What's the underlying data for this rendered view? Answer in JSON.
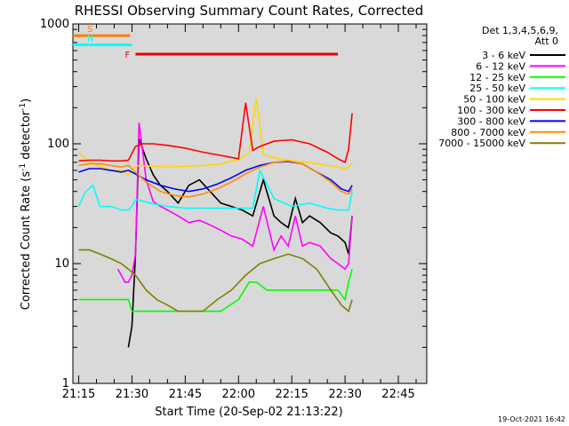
{
  "chart_data": {
    "type": "line",
    "title": "RHESSI Observing Summary Count Rates, Corrected",
    "xlabel": "Start Time (20-Sep-02 21:13:22)",
    "ylabel_main": "Corrected Count Rate (s",
    "ylabel_exp1": "-1",
    "ylabel_mid": " detector",
    "ylabel_exp2": "-1",
    "ylabel_end": ")",
    "y_scale": "log",
    "ylim": [
      1,
      1000
    ],
    "xlim": [
      "21:13:22",
      "22:53:00"
    ],
    "x_ticks": [
      "21:15",
      "21:30",
      "21:45",
      "22:00",
      "22:15",
      "22:30",
      "22:45"
    ],
    "y_ticks": [
      "1",
      "10",
      "100",
      "1000"
    ],
    "legend_header": [
      "Det 1,3,4,5,6,9,",
      "Att 0"
    ],
    "legend_position": "right",
    "footer_date": "19-Oct-2021 16:42",
    "flags": [
      {
        "label": "S",
        "color": "#ff7f00",
        "value": 800,
        "from": "21:13:22",
        "to": "21:29:30"
      },
      {
        "label": "N",
        "color": "#00ffff",
        "value": 670,
        "from": "21:13:22",
        "to": "21:30:00"
      },
      {
        "label": "F",
        "color": "#e00000",
        "value": 560,
        "from": "21:31:00",
        "to": "22:28:00"
      }
    ],
    "series": [
      {
        "name": "3 - 6 keV",
        "color": "#000000",
        "x": [
          "21:15",
          "21:18",
          "21:21",
          "21:24",
          "21:27",
          "21:29",
          "21:30",
          "21:31",
          "21:32",
          "21:34",
          "21:36",
          "21:38",
          "21:40",
          "21:43",
          "21:46",
          "21:49",
          "21:52",
          "21:55",
          "21:58",
          "22:01",
          "22:04",
          "22:07",
          "22:10",
          "22:12",
          "22:14",
          "22:16",
          "22:18",
          "22:20",
          "22:23",
          "22:26",
          "22:28",
          "22:30",
          "22:31",
          "22:32"
        ],
        "y": [
          null,
          null,
          null,
          null,
          null,
          2,
          3,
          12,
          110,
          75,
          55,
          45,
          40,
          32,
          45,
          50,
          40,
          32,
          30,
          28,
          25,
          50,
          25,
          22,
          20,
          35,
          22,
          25,
          22,
          18,
          17,
          15,
          12,
          25
        ]
      },
      {
        "name": "6 - 12 keV",
        "color": "#ff00ff",
        "x": [
          "21:26",
          "21:27",
          "21:28",
          "21:29",
          "21:30",
          "21:31",
          "21:32",
          "21:34",
          "21:36",
          "21:38",
          "21:40",
          "21:43",
          "21:46",
          "21:49",
          "21:52",
          "21:55",
          "21:58",
          "22:01",
          "22:04",
          "22:07",
          "22:10",
          "22:12",
          "22:14",
          "22:16",
          "22:18",
          "22:20",
          "22:23",
          "22:26",
          "22:28",
          "22:30",
          "22:31",
          "22:32"
        ],
        "y": [
          9,
          8,
          7,
          7,
          8,
          12,
          150,
          50,
          33,
          30,
          28,
          25,
          22,
          23,
          21,
          19,
          17,
          16,
          14,
          30,
          13,
          17,
          14,
          25,
          14,
          15,
          14,
          11,
          10,
          9,
          10,
          25
        ]
      },
      {
        "name": "12 - 25 keV",
        "color": "#00ff00",
        "x": [
          "21:15",
          "21:18",
          "21:21",
          "21:24",
          "21:27",
          "21:29",
          "21:30",
          "21:31",
          "21:32",
          "21:35",
          "21:40",
          "21:45",
          "21:50",
          "21:55",
          "22:00",
          "22:03",
          "22:05",
          "22:08",
          "22:10",
          "22:15",
          "22:20",
          "22:25",
          "22:28",
          "22:30",
          "22:31",
          "22:32"
        ],
        "y": [
          5,
          5,
          5,
          5,
          5,
          5,
          4,
          4,
          4,
          4,
          4,
          4,
          4,
          4,
          5,
          7,
          7,
          6,
          6,
          6,
          6,
          6,
          6,
          5,
          7,
          9
        ]
      },
      {
        "name": "25 - 50 keV",
        "color": "#00ffff",
        "x": [
          "21:15",
          "21:17",
          "21:19",
          "21:21",
          "21:24",
          "21:27",
          "21:29",
          "21:30",
          "21:31",
          "21:32",
          "21:35",
          "21:40",
          "21:45",
          "21:50",
          "21:55",
          "22:00",
          "22:04",
          "22:06",
          "22:10",
          "22:15",
          "22:20",
          "22:25",
          "22:28",
          "22:30",
          "22:31",
          "22:32"
        ],
        "y": [
          30,
          40,
          45,
          30,
          30,
          28,
          28,
          30,
          34,
          34,
          32,
          30,
          29,
          29,
          29,
          29,
          29,
          60,
          35,
          30,
          32,
          29,
          28,
          28,
          28,
          40
        ]
      },
      {
        "name": "50 - 100 keV",
        "color": "#ffd700",
        "x": [
          "21:15",
          "21:18",
          "21:21",
          "21:24",
          "21:27",
          "21:29",
          "21:30",
          "21:31",
          "21:32",
          "21:36",
          "21:40",
          "21:45",
          "21:50",
          "21:55",
          "22:00",
          "22:03",
          "22:05",
          "22:07",
          "22:10",
          "22:15",
          "22:20",
          "22:25",
          "22:28",
          "22:30",
          "22:31",
          "22:32"
        ],
        "y": [
          85,
          70,
          65,
          60,
          60,
          55,
          62,
          64,
          66,
          65,
          64,
          65,
          66,
          68,
          74,
          85,
          240,
          82,
          76,
          72,
          70,
          66,
          64,
          62,
          64,
          70
        ]
      },
      {
        "name": "100 - 300 keV",
        "color": "#ff0000",
        "x": [
          "21:15",
          "21:18",
          "21:21",
          "21:24",
          "21:27",
          "21:29",
          "21:31",
          "21:33",
          "21:36",
          "21:40",
          "21:45",
          "21:50",
          "21:55",
          "22:00",
          "22:02",
          "22:04",
          "22:06",
          "22:10",
          "22:15",
          "22:20",
          "22:25",
          "22:28",
          "22:30",
          "22:31",
          "22:32"
        ],
        "y": [
          72,
          73,
          73,
          72,
          72,
          73,
          95,
          100,
          100,
          97,
          92,
          85,
          80,
          75,
          220,
          88,
          95,
          105,
          108,
          100,
          85,
          75,
          70,
          90,
          180
        ]
      },
      {
        "name": "300 - 800 keV",
        "color": "#0000ff",
        "x": [
          "21:15",
          "21:18",
          "21:21",
          "21:24",
          "21:27",
          "21:29",
          "21:31",
          "21:34",
          "21:38",
          "21:42",
          "21:46",
          "21:50",
          "21:54",
          "21:58",
          "22:02",
          "22:06",
          "22:10",
          "22:14",
          "22:18",
          "22:22",
          "22:26",
          "22:29",
          "22:31",
          "22:32"
        ],
        "y": [
          58,
          62,
          62,
          60,
          58,
          60,
          56,
          50,
          45,
          42,
          40,
          42,
          46,
          52,
          60,
          66,
          70,
          71,
          68,
          58,
          50,
          42,
          40,
          45
        ]
      },
      {
        "name": "800 - 7000 keV",
        "color": "#ff8c00",
        "x": [
          "21:15",
          "21:18",
          "21:21",
          "21:24",
          "21:27",
          "21:29",
          "21:31",
          "21:34",
          "21:38",
          "21:42",
          "21:46",
          "21:50",
          "21:54",
          "21:58",
          "22:02",
          "22:06",
          "22:10",
          "22:14",
          "22:18",
          "22:22",
          "22:26",
          "22:29",
          "22:31",
          "22:32"
        ],
        "y": [
          66,
          68,
          68,
          66,
          64,
          66,
          58,
          48,
          40,
          37,
          36,
          38,
          42,
          48,
          56,
          64,
          70,
          72,
          68,
          58,
          48,
          40,
          38,
          42
        ]
      },
      {
        "name": "7000 - 15000 keV",
        "color": "#808000",
        "x": [
          "21:15",
          "21:18",
          "21:21",
          "21:24",
          "21:27",
          "21:29",
          "21:31",
          "21:34",
          "21:37",
          "21:40",
          "21:43",
          "21:46",
          "21:50",
          "21:54",
          "21:58",
          "22:02",
          "22:06",
          "22:10",
          "22:14",
          "22:18",
          "22:22",
          "22:26",
          "22:29",
          "22:31",
          "22:32"
        ],
        "y": [
          13,
          13,
          12,
          11,
          10,
          9,
          8,
          6,
          5,
          4.5,
          4,
          4,
          4,
          5,
          6,
          8,
          10,
          11,
          12,
          11,
          9,
          6,
          4.5,
          4,
          5
        ]
      }
    ]
  }
}
